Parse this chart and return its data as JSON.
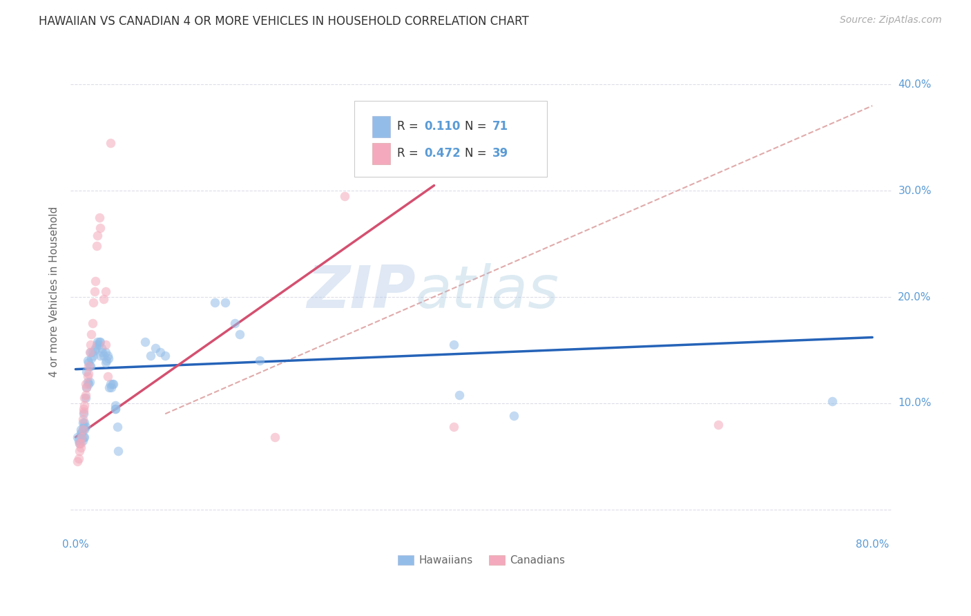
{
  "title": "HAWAIIAN VS CANADIAN 4 OR MORE VEHICLES IN HOUSEHOLD CORRELATION CHART",
  "source": "Source: ZipAtlas.com",
  "ylabel": "4 or more Vehicles in Household",
  "watermark_zip": "ZIP",
  "watermark_atlas": "atlas",
  "xlim": [
    -0.005,
    0.82
  ],
  "ylim": [
    -0.025,
    0.435
  ],
  "xticks": [
    0.0,
    0.1,
    0.2,
    0.3,
    0.4,
    0.5,
    0.6,
    0.7,
    0.8
  ],
  "yticks": [
    0.0,
    0.1,
    0.2,
    0.3,
    0.4
  ],
  "xticklabels_left": "0.0%",
  "xticklabels_right": "80.0%",
  "ytick_labels": [
    "10.0%",
    "20.0%",
    "30.0%",
    "40.0%"
  ],
  "hawaiian_color": "#93BDE8",
  "canadian_color": "#F4AABC",
  "hawaiian_line_color": "#2563B8",
  "canadian_line_color": "#D45070",
  "diagonal_color": "#E0AAAA",
  "background_color": "#FFFFFF",
  "grid_color": "#DCDCE8",
  "hawaiian_points": [
    [
      0.002,
      0.068
    ],
    [
      0.003,
      0.065
    ],
    [
      0.004,
      0.062
    ],
    [
      0.005,
      0.072
    ],
    [
      0.005,
      0.075
    ],
    [
      0.006,
      0.068
    ],
    [
      0.006,
      0.072
    ],
    [
      0.007,
      0.065
    ],
    [
      0.007,
      0.075
    ],
    [
      0.007,
      0.082
    ],
    [
      0.008,
      0.068
    ],
    [
      0.008,
      0.078
    ],
    [
      0.008,
      0.09
    ],
    [
      0.009,
      0.068
    ],
    [
      0.009,
      0.075
    ],
    [
      0.009,
      0.082
    ],
    [
      0.01,
      0.078
    ],
    [
      0.01,
      0.105
    ],
    [
      0.011,
      0.115
    ],
    [
      0.011,
      0.13
    ],
    [
      0.012,
      0.12
    ],
    [
      0.012,
      0.14
    ],
    [
      0.013,
      0.118
    ],
    [
      0.013,
      0.138
    ],
    [
      0.014,
      0.12
    ],
    [
      0.014,
      0.135
    ],
    [
      0.015,
      0.135
    ],
    [
      0.015,
      0.148
    ],
    [
      0.016,
      0.142
    ],
    [
      0.017,
      0.148
    ],
    [
      0.018,
      0.145
    ],
    [
      0.019,
      0.15
    ],
    [
      0.02,
      0.152
    ],
    [
      0.021,
      0.155
    ],
    [
      0.022,
      0.158
    ],
    [
      0.023,
      0.155
    ],
    [
      0.024,
      0.158
    ],
    [
      0.025,
      0.158
    ],
    [
      0.025,
      0.145
    ],
    [
      0.026,
      0.152
    ],
    [
      0.027,
      0.148
    ],
    [
      0.028,
      0.145
    ],
    [
      0.03,
      0.148
    ],
    [
      0.03,
      0.138
    ],
    [
      0.031,
      0.14
    ],
    [
      0.032,
      0.145
    ],
    [
      0.033,
      0.142
    ],
    [
      0.034,
      0.115
    ],
    [
      0.035,
      0.118
    ],
    [
      0.036,
      0.115
    ],
    [
      0.037,
      0.118
    ],
    [
      0.038,
      0.118
    ],
    [
      0.04,
      0.095
    ],
    [
      0.04,
      0.098
    ],
    [
      0.04,
      0.095
    ],
    [
      0.042,
      0.078
    ],
    [
      0.043,
      0.055
    ],
    [
      0.07,
      0.158
    ],
    [
      0.075,
      0.145
    ],
    [
      0.08,
      0.152
    ],
    [
      0.085,
      0.148
    ],
    [
      0.09,
      0.145
    ],
    [
      0.14,
      0.195
    ],
    [
      0.15,
      0.195
    ],
    [
      0.16,
      0.175
    ],
    [
      0.165,
      0.165
    ],
    [
      0.185,
      0.14
    ],
    [
      0.38,
      0.155
    ],
    [
      0.385,
      0.108
    ],
    [
      0.44,
      0.088
    ],
    [
      0.76,
      0.102
    ]
  ],
  "canadian_points": [
    [
      0.002,
      0.045
    ],
    [
      0.003,
      0.048
    ],
    [
      0.004,
      0.055
    ],
    [
      0.004,
      0.062
    ],
    [
      0.005,
      0.058
    ],
    [
      0.005,
      0.062
    ],
    [
      0.006,
      0.068
    ],
    [
      0.007,
      0.075
    ],
    [
      0.007,
      0.085
    ],
    [
      0.008,
      0.092
    ],
    [
      0.008,
      0.095
    ],
    [
      0.009,
      0.098
    ],
    [
      0.009,
      0.105
    ],
    [
      0.01,
      0.108
    ],
    [
      0.01,
      0.118
    ],
    [
      0.011,
      0.115
    ],
    [
      0.012,
      0.125
    ],
    [
      0.013,
      0.128
    ],
    [
      0.013,
      0.135
    ],
    [
      0.014,
      0.148
    ],
    [
      0.015,
      0.155
    ],
    [
      0.016,
      0.165
    ],
    [
      0.017,
      0.175
    ],
    [
      0.018,
      0.195
    ],
    [
      0.019,
      0.205
    ],
    [
      0.02,
      0.215
    ],
    [
      0.021,
      0.248
    ],
    [
      0.022,
      0.258
    ],
    [
      0.024,
      0.275
    ],
    [
      0.025,
      0.265
    ],
    [
      0.028,
      0.198
    ],
    [
      0.03,
      0.205
    ],
    [
      0.03,
      0.155
    ],
    [
      0.032,
      0.125
    ],
    [
      0.035,
      0.345
    ],
    [
      0.27,
      0.295
    ],
    [
      0.38,
      0.078
    ],
    [
      0.645,
      0.08
    ],
    [
      0.2,
      0.068
    ]
  ],
  "title_fontsize": 12,
  "source_fontsize": 10,
  "label_fontsize": 11,
  "tick_fontsize": 11,
  "legend_fontsize": 12,
  "marker_size": 95,
  "marker_alpha": 0.55,
  "hawaiian_trend_x": [
    0.0,
    0.8
  ],
  "hawaiian_trend_y": [
    0.132,
    0.162
  ],
  "canadian_trend_x": [
    0.0,
    0.36
  ],
  "canadian_trend_y": [
    0.068,
    0.305
  ],
  "diagonal_trend_x": [
    0.09,
    0.8
  ],
  "diagonal_trend_y": [
    0.09,
    0.38
  ]
}
